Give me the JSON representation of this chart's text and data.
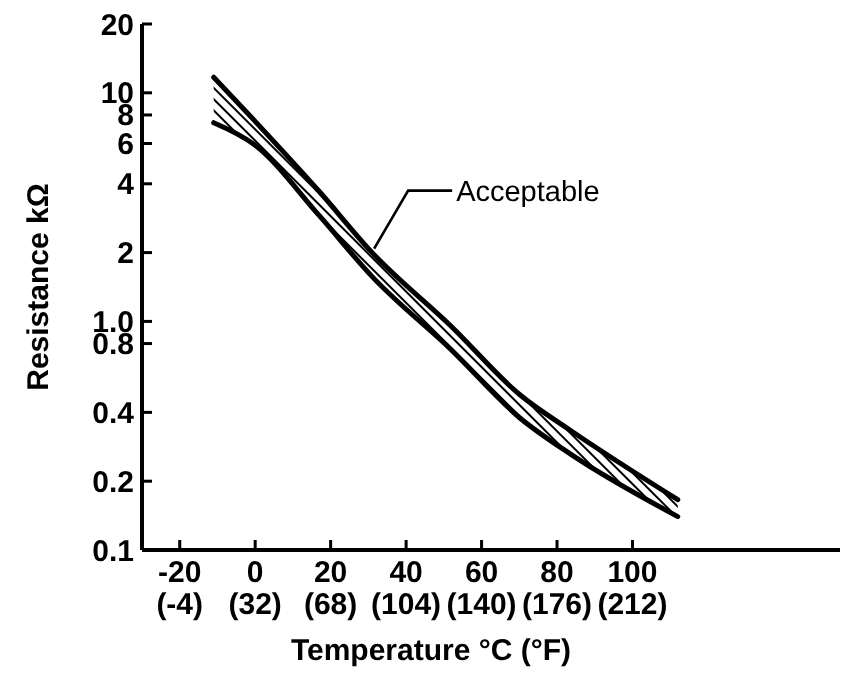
{
  "chart_data": {
    "type": "line",
    "xlabel": "Temperature °C (°F)",
    "ylabel": "Resistance kΩ",
    "log": "y",
    "grid": false,
    "xlim": [
      -30,
      155
    ],
    "xticks": [
      -20,
      0,
      20,
      40,
      60,
      80,
      100
    ],
    "x2lim": [
      -22,
      311
    ],
    "x2ticks": [
      {
        "value": -4,
        "label": "(-4)"
      },
      {
        "value": 32,
        "label": "(32)"
      },
      {
        "value": 68,
        "label": "(68)"
      },
      {
        "value": 104,
        "label": "(104)"
      },
      {
        "value": 140,
        "label": "(140)"
      },
      {
        "value": 176,
        "label": "(176)"
      },
      {
        "value": 212,
        "label": "(212)"
      }
    ],
    "ylim": [
      0.1,
      20
    ],
    "yticks": [
      0.1,
      0.2,
      0.4,
      0.8,
      {
        "value": 1,
        "label": "1.0"
      },
      2,
      4,
      6,
      8,
      10,
      20
    ],
    "annotations": [
      {
        "text": "Acceptable",
        "x": 31,
        "y": 2.0
      }
    ],
    "series": [
      {
        "color": "#000000",
        "x": [
          -11,
          0,
          17,
          31,
          52,
          70,
          84,
          112
        ],
        "values": [
          11.7,
          7.5,
          3.7,
          2.0,
          0.95,
          0.48,
          0.33,
          0.166
        ]
      },
      {
        "color": "#000000",
        "x": [
          -11,
          0,
          17,
          31,
          52,
          70,
          84,
          112
        ],
        "values": [
          7.4,
          5.9,
          2.9,
          1.57,
          0.75,
          0.38,
          0.26,
          0.14
        ]
      }
    ]
  }
}
